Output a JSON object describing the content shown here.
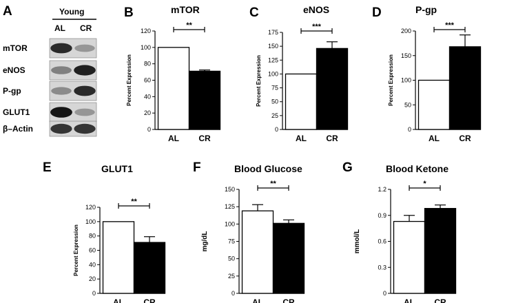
{
  "blot": {
    "letter": "A",
    "group_label": "Young",
    "lanes": [
      "AL",
      "CR"
    ],
    "rows": [
      {
        "label": "mTOR",
        "intensity": [
          0.85,
          0.35
        ]
      },
      {
        "label": "eNOS",
        "intensity": [
          0.45,
          0.9
        ]
      },
      {
        "label": "P-gp",
        "intensity": [
          0.4,
          0.85
        ]
      },
      {
        "label": "GLUT1",
        "intensity": [
          0.95,
          0.35
        ]
      },
      {
        "label": "β–Actin",
        "intensity": [
          0.8,
          0.8
        ]
      }
    ]
  },
  "chart_data": [
    {
      "id": "B",
      "letter": "B",
      "type": "bar",
      "title": "mTOR",
      "ylabel": "Percent Expression",
      "categories": [
        "AL",
        "CR"
      ],
      "values": [
        100,
        71
      ],
      "errors": [
        0,
        1.5
      ],
      "ylim": [
        0,
        120
      ],
      "yticks": [
        "0",
        "20",
        "40",
        "60",
        "80",
        "100",
        "120"
      ],
      "significance": "**",
      "fills": [
        "#ffffff",
        "#000000"
      ]
    },
    {
      "id": "C",
      "letter": "C",
      "type": "bar",
      "title": "eNOS",
      "ylabel": "Percent Expression",
      "categories": [
        "AL",
        "CR"
      ],
      "values": [
        100,
        146
      ],
      "errors": [
        0,
        12
      ],
      "ylim": [
        0,
        175
      ],
      "yticks": [
        "0",
        "25",
        "50",
        "75",
        "100",
        "125",
        "150",
        "175"
      ],
      "significance": "***",
      "fills": [
        "#ffffff",
        "#000000"
      ]
    },
    {
      "id": "D",
      "letter": "D",
      "type": "bar",
      "title": "P-gp",
      "ylabel": "Percent Expression",
      "categories": [
        "AL",
        "CR"
      ],
      "values": [
        100,
        168
      ],
      "errors": [
        0,
        24
      ],
      "ylim": [
        0,
        200
      ],
      "yticks": [
        "0",
        "50",
        "100",
        "150",
        "200"
      ],
      "significance": "***",
      "fills": [
        "#ffffff",
        "#000000"
      ]
    },
    {
      "id": "E",
      "letter": "E",
      "type": "bar",
      "title": "GLUT1",
      "ylabel": "Percent Expression",
      "categories": [
        "AL",
        "CR"
      ],
      "values": [
        100,
        71
      ],
      "errors": [
        0,
        8
      ],
      "ylim": [
        0,
        120
      ],
      "yticks": [
        "0",
        "20",
        "40",
        "60",
        "80",
        "100",
        "120"
      ],
      "significance": "**",
      "fills": [
        "#ffffff",
        "#000000"
      ]
    },
    {
      "id": "F",
      "letter": "F",
      "type": "bar",
      "title": "Blood Glucose",
      "ylabel": "mg/dL",
      "categories": [
        "AL",
        "CR"
      ],
      "values": [
        119,
        101
      ],
      "errors": [
        9,
        5
      ],
      "ylim": [
        0,
        150
      ],
      "yticks": [
        "0",
        "25",
        "50",
        "75",
        "100",
        "125",
        "150"
      ],
      "significance": "**",
      "fills": [
        "#ffffff",
        "#000000"
      ]
    },
    {
      "id": "G",
      "letter": "G",
      "type": "bar",
      "title": "Blood Ketone",
      "ylabel": "mmol/L",
      "categories": [
        "AL",
        "CR"
      ],
      "values": [
        0.83,
        0.98
      ],
      "errors": [
        0.07,
        0.04
      ],
      "ylim": [
        0,
        1.2
      ],
      "yticks": [
        "0",
        "0.3",
        "0.6",
        "0.9",
        "1.2"
      ],
      "significance": "*",
      "fills": [
        "#ffffff",
        "#000000"
      ]
    }
  ]
}
